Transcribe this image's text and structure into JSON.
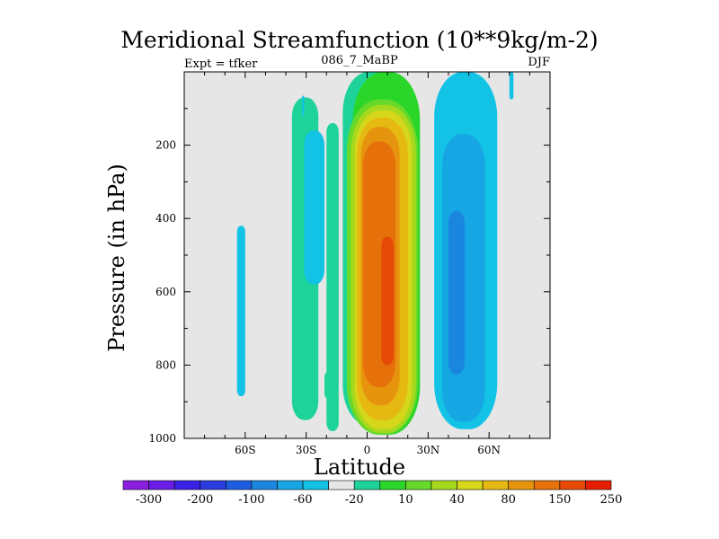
{
  "title": "Meridional Streamfunction (10**9kg/m-2)",
  "left_label": "Expt = tfker",
  "center_label": "086_7_MaBP",
  "right_label": "DJF",
  "chart_data": {
    "type": "heatmap",
    "xlabel": "Latitude",
    "ylabel": "Pressure (in hPa)",
    "x_ticks": [
      {
        "v": -60,
        "label": "60S"
      },
      {
        "v": -30,
        "label": "30S"
      },
      {
        "v": 0,
        "label": "0"
      },
      {
        "v": 30,
        "label": "30N"
      },
      {
        "v": 60,
        "label": "60N"
      }
    ],
    "y_ticks": [
      200,
      400,
      600,
      800,
      1000
    ],
    "xlim": [
      -90,
      90
    ],
    "ylim": [
      0,
      1000
    ],
    "y_reversed": true,
    "background_color": "#e6e6e6",
    "levels": [
      -300,
      -200,
      -100,
      -60,
      -20,
      10,
      40,
      80,
      150,
      250
    ],
    "colorbar_labels": [
      "-300",
      "-200",
      "-100",
      "-60",
      "-20",
      "10",
      "40",
      "80",
      "150",
      "250"
    ],
    "colorbar_colors": [
      "#8a1fe0",
      "#6a1de6",
      "#3a22e6",
      "#2a3cdd",
      "#1e5ce2",
      "#1a86e0",
      "#16a6e4",
      "#12c3e6",
      "#e6e6e6",
      "#1ed39a",
      "#2ad62a",
      "#66d92a",
      "#a6d91e",
      "#d6d61a",
      "#e6b812",
      "#e6940e",
      "#e6700a",
      "#e64a06",
      "#e61e02"
    ],
    "contour_bands": [
      {
        "color": "#1ed39a",
        "regions": [
          {
            "lat": [
              -37,
              -24
            ],
            "p": [
              70,
              950
            ]
          },
          {
            "lat": [
              -12,
              16
            ],
            "p": [
              0,
              965
            ]
          },
          {
            "lat": [
              -20,
              -14
            ],
            "p": [
              140,
              980
            ]
          },
          {
            "lat": [
              -21,
              -18
            ],
            "p": [
              820,
              890
            ]
          }
        ]
      },
      {
        "color": "#2ad62a",
        "regions": [
          {
            "lat": [
              -7,
              26
            ],
            "p": [
              0,
              990
            ]
          }
        ]
      },
      {
        "color": "#66d92a",
        "regions": [
          {
            "lat": [
              -10,
              25
            ],
            "p": [
              75,
              990
            ]
          }
        ]
      },
      {
        "color": "#a6d91e",
        "regions": [
          {
            "lat": [
              -8,
              24
            ],
            "p": [
              90,
              985
            ]
          }
        ]
      },
      {
        "color": "#d6d61a",
        "regions": [
          {
            "lat": [
              -6,
              22
            ],
            "p": [
              105,
              975
            ]
          }
        ]
      },
      {
        "color": "#e6b812",
        "regions": [
          {
            "lat": [
              -5,
              20
            ],
            "p": [
              125,
              950
            ]
          }
        ]
      },
      {
        "color": "#e6940e",
        "regions": [
          {
            "lat": [
              -3,
              16
            ],
            "p": [
              150,
              910
            ]
          }
        ]
      },
      {
        "color": "#e6700a",
        "regions": [
          {
            "lat": [
              -2,
              14
            ],
            "p": [
              190,
              860
            ]
          }
        ]
      },
      {
        "color": "#e64a06",
        "regions": [
          {
            "lat": [
              7,
              13
            ],
            "p": [
              450,
              800
            ]
          }
        ]
      },
      {
        "color": "#12c3e6",
        "regions": [
          {
            "lat": [
              -64,
              -60
            ],
            "p": [
              420,
              885
            ]
          },
          {
            "lat": [
              -31,
              -21
            ],
            "p": [
              160,
              580
            ]
          },
          {
            "lat": [
              -32,
              -31
            ],
            "p": [
              65,
              120
            ]
          },
          {
            "lat": [
              33,
              64
            ],
            "p": [
              0,
              975
            ]
          },
          {
            "lat": [
              70,
              72
            ],
            "p": [
              0,
              75
            ]
          }
        ]
      },
      {
        "color": "#16a6e4",
        "regions": [
          {
            "lat": [
              37,
              58
            ],
            "p": [
              170,
              955
            ]
          }
        ]
      },
      {
        "color": "#1a86e0",
        "regions": [
          {
            "lat": [
              40,
              48
            ],
            "p": [
              380,
              825
            ]
          }
        ]
      }
    ]
  }
}
